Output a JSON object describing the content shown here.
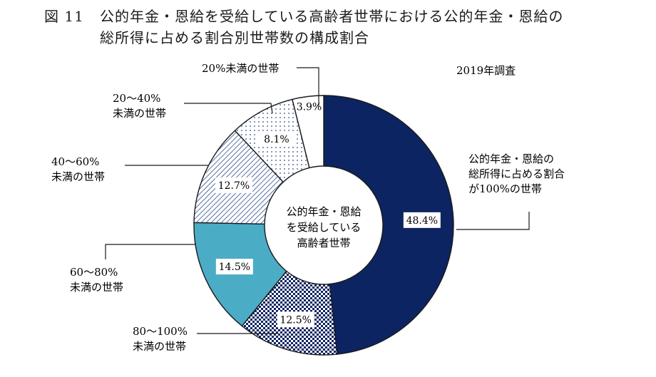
{
  "figure": {
    "number": "図 11",
    "title_line1": "公的年金・恩給を受給している高齢者世帯における公的年金・恩給の",
    "title_line2": "総所得に占める割合別世帯数の構成割合",
    "note": "2019年調査",
    "center_label": [
      "公的年金・恩給",
      "を受給している",
      "高齢者世帯"
    ]
  },
  "chart_data": {
    "type": "pie",
    "subtype": "donut",
    "title": "公的年金・恩給を受給している高齢者世帯における公的年金・恩給の総所得に占める割合別世帯数の構成割合",
    "categories": [
      "公的年金・恩給の総所得に占める割合が100%の世帯",
      "80〜100%未満の世帯",
      "60〜80%未満の世帯",
      "40〜60%未満の世帯",
      "20〜40%未満の世帯",
      "20%未満の世帯"
    ],
    "values": [
      48.4,
      12.5,
      14.5,
      12.7,
      8.1,
      3.9
    ],
    "value_labels": [
      "48.4%",
      "12.5%",
      "14.5%",
      "12.7%",
      "8.1%",
      "3.9%"
    ],
    "category_labels": [
      [
        "公的年金・恩給の",
        "総所得に占める割合",
        "が100%の世帯"
      ],
      [
        "80〜100%",
        "未満の世帯"
      ],
      [
        "60〜80%",
        "未満の世帯"
      ],
      [
        "40〜60%",
        "未満の世帯"
      ],
      [
        "20〜40%",
        "未満の世帯"
      ],
      [
        "20%未満の世帯"
      ]
    ],
    "fills": [
      "navy-solid",
      "navy-check-pattern",
      "light-blue-solid",
      "diagonal-hatch",
      "dot-pattern",
      "white"
    ],
    "colors": {
      "navy": "#0c2461",
      "light_blue": "#4bacc6",
      "hatch": "#2b4c8c",
      "outline": "#1a1a1a"
    },
    "start_angle": "12 o'clock",
    "direction": "clockwise"
  }
}
